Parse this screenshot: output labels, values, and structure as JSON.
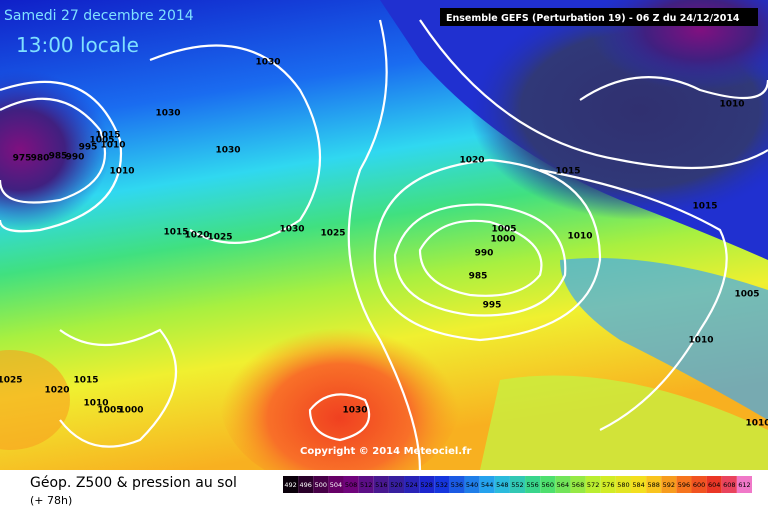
{
  "header": {
    "date": "Samedi 27 decembre 2014",
    "time": "13:00 locale",
    "model": "Ensemble GEFS  (Perturbation 19)  -  06 Z du 24/12/2014"
  },
  "map": {
    "copyright": "Copyright © 2014 Meteociel.fr",
    "isobar_labels": [
      "1030",
      "1030",
      "1030",
      "975",
      "980",
      "985",
      "990",
      "995",
      "1005",
      "1010",
      "1015",
      "1010",
      "1015",
      "1020",
      "1025",
      "1030",
      "1025",
      "1020",
      "1015",
      "1005",
      "1000",
      "990",
      "985",
      "995",
      "1010",
      "1015",
      "1010",
      "1005",
      "1010",
      "1025",
      "1020",
      "1015",
      "1010",
      "1005",
      "1000",
      "1030",
      "1010"
    ]
  },
  "footer": {
    "title": "Géop. Z500 & pression au sol",
    "lead": "(+ 78h)",
    "scale": [
      "492",
      "496",
      "500",
      "504",
      "508",
      "512",
      "516",
      "520",
      "524",
      "528",
      "532",
      "536",
      "540",
      "544",
      "548",
      "552",
      "556",
      "560",
      "564",
      "568",
      "572",
      "576",
      "580",
      "584",
      "588",
      "592",
      "596",
      "600",
      "604",
      "608",
      "612"
    ]
  }
}
